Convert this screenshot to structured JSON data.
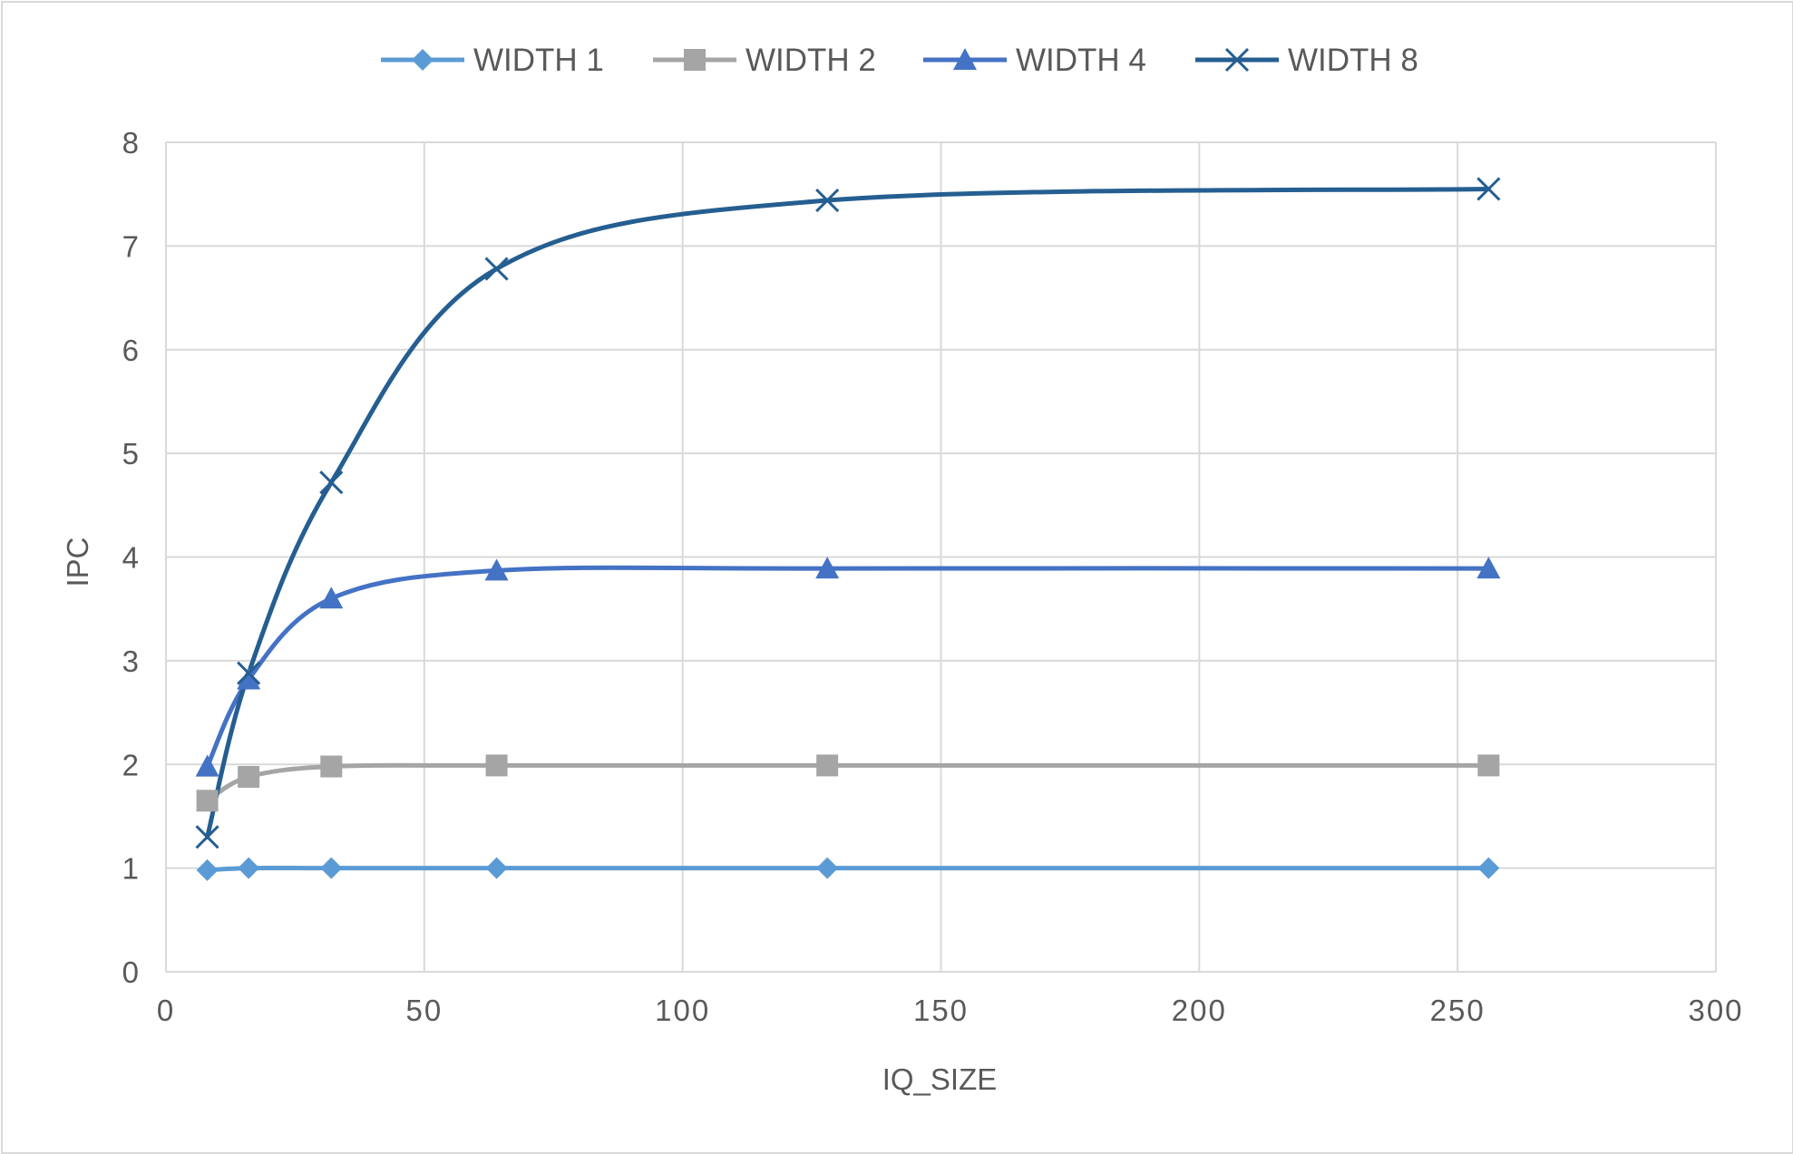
{
  "chart_data": {
    "type": "line",
    "title": "",
    "xlabel": "IQ_SIZE",
    "ylabel": "IPC",
    "xlim": [
      0,
      300
    ],
    "ylim": [
      0,
      8
    ],
    "x_ticks": [
      0,
      50,
      100,
      150,
      200,
      250,
      300
    ],
    "y_ticks": [
      0,
      1,
      2,
      3,
      4,
      5,
      6,
      7,
      8
    ],
    "grid": true,
    "legend_position": "top",
    "smooth": true,
    "x": [
      8,
      16,
      32,
      64,
      128,
      256
    ],
    "series": [
      {
        "name": "WIDTH 1",
        "marker": "diamond",
        "color": "#5b9bd5",
        "values": [
          0.98,
          1.0,
          1.0,
          1.0,
          1.0,
          1.0
        ]
      },
      {
        "name": "WIDTH 2",
        "marker": "square",
        "color": "#a5a5a5",
        "values": [
          1.65,
          1.88,
          1.98,
          1.99,
          1.99,
          1.99
        ]
      },
      {
        "name": "WIDTH 4",
        "marker": "triangle",
        "color": "#4472c4",
        "values": [
          1.98,
          2.82,
          3.6,
          3.87,
          3.89,
          3.89
        ]
      },
      {
        "name": "WIDTH 8",
        "marker": "x",
        "color": "#255e91",
        "values": [
          1.3,
          2.88,
          4.72,
          6.78,
          7.44,
          7.55
        ]
      }
    ]
  }
}
